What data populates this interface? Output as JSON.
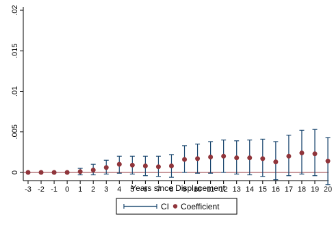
{
  "chart_data": {
    "type": "scatter",
    "title": "",
    "xlabel": "Years since Displacement",
    "ylabel": "",
    "x": [
      -3,
      -2,
      -1,
      0,
      1,
      2,
      3,
      4,
      5,
      6,
      7,
      8,
      9,
      10,
      11,
      12,
      13,
      14,
      15,
      16,
      17,
      18,
      19,
      20
    ],
    "x_ticks": [
      "-3",
      "-2",
      "-1",
      "0",
      "1",
      "2",
      "3",
      "4",
      "5",
      "6",
      "7",
      "8",
      "9",
      "10",
      "11",
      "12",
      "13",
      "14",
      "15",
      "16",
      "17",
      "18",
      "19",
      "20"
    ],
    "y_ticks": [
      {
        "value": 0,
        "label": "0"
      },
      {
        "value": 0.005,
        "label": ".005"
      },
      {
        "value": 0.01,
        "label": ".01"
      },
      {
        "value": 0.015,
        "label": ".015"
      },
      {
        "value": 0.02,
        "label": ".02"
      }
    ],
    "ylim": [
      0,
      0.02
    ],
    "xlim": [
      -3,
      20
    ],
    "grid": false,
    "legend_placement": "bottom",
    "series": [
      {
        "name": "Coefficient",
        "values": [
          0,
          0,
          0,
          0,
          0.0001,
          0.0003,
          0.0006,
          0.001,
          0.0009,
          0.0008,
          0.0007,
          0.0008,
          0.0016,
          0.0017,
          0.0019,
          0.002,
          0.0018,
          0.0018,
          0.0017,
          0.0013,
          0.002,
          0.0024,
          0.0023,
          0.0014
        ]
      },
      {
        "name": "CI",
        "lower": [
          0,
          0,
          0,
          0,
          -0.0003,
          -0.0003,
          -0.0002,
          -0.0001,
          -0.0002,
          -0.0004,
          -0.0005,
          -0.0006,
          0,
          -0.0001,
          -0.0001,
          0,
          -0.0002,
          -0.0003,
          -0.0005,
          -0.0009,
          -0.0004,
          -0.0002,
          -0.0004,
          -0.0015
        ],
        "upper": [
          0,
          0,
          0,
          0,
          0.0005,
          0.001,
          0.0015,
          0.002,
          0.002,
          0.002,
          0.002,
          0.0022,
          0.0033,
          0.0035,
          0.0038,
          0.004,
          0.0039,
          0.004,
          0.0041,
          0.0038,
          0.0046,
          0.0052,
          0.0053,
          0.0043
        ]
      }
    ],
    "reference_line": {
      "y": 0
    },
    "colors": {
      "ci": "#1a476f",
      "coefficient": "#90353b",
      "zero_line": "#90353b",
      "axis": "#000000"
    }
  },
  "legend": {
    "ci_label": "CI",
    "coefficient_label": "Coefficient"
  }
}
